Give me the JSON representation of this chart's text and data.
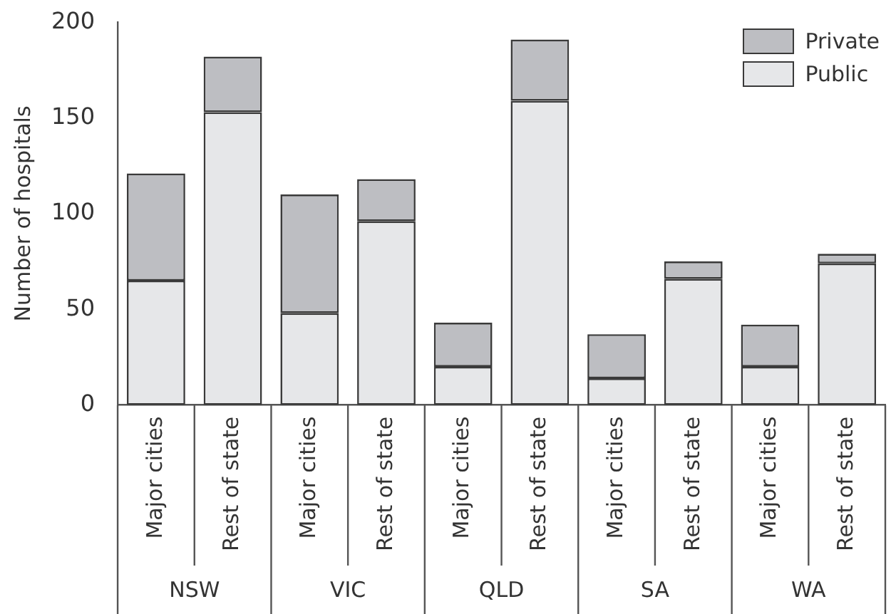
{
  "chart_data": {
    "type": "bar",
    "stacked": true,
    "ylabel": "Number of hospitals",
    "categories": [
      "Major cities",
      "Rest of state",
      "Major cities",
      "Rest of state",
      "Major cities",
      "Rest of state",
      "Major cities",
      "Rest of state",
      "Major cities",
      "Rest of state"
    ],
    "annotations": [
      "NSW",
      "VIC",
      "QLD",
      "SA",
      "WA"
    ],
    "series": [
      {
        "name": "Public",
        "color": "#e6e7e9",
        "values": [
          65,
          153,
          48,
          96,
          20,
          159,
          14,
          66,
          20,
          74
        ]
      },
      {
        "name": "Private",
        "color": "#bdbec2",
        "values": [
          56,
          29,
          62,
          22,
          23,
          32,
          23,
          9,
          22,
          5
        ]
      }
    ],
    "ylim": [
      0,
      200
    ],
    "yticks": [
      0,
      50,
      100,
      150,
      200
    ],
    "grid": false,
    "legend": "top right"
  }
}
